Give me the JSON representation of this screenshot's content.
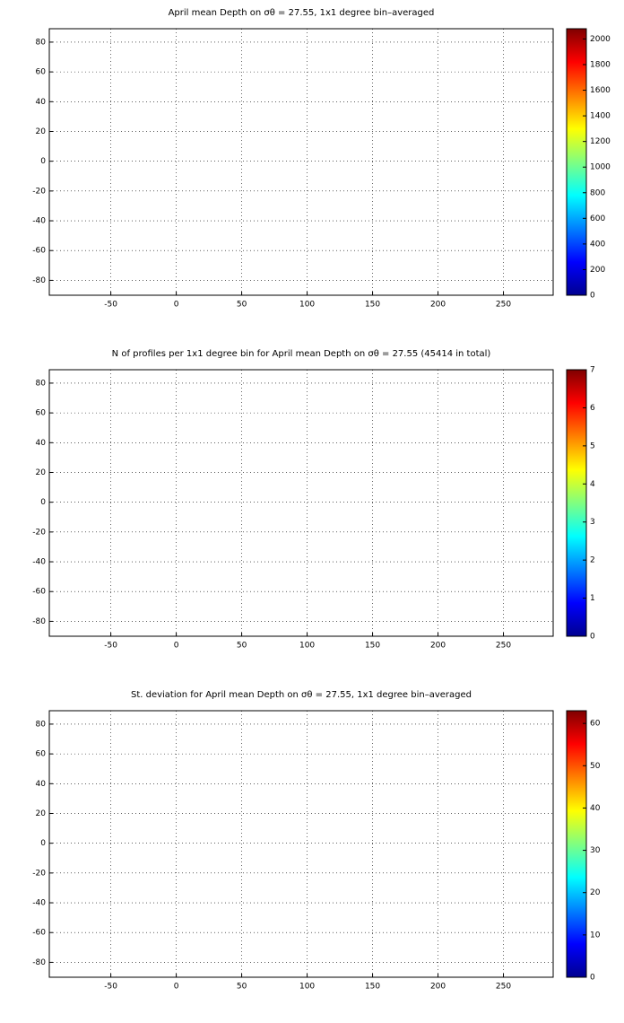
{
  "chart_data": [
    {
      "type": "map",
      "title": "April mean Depth on σθ = 27.55, 1x1 degree bin–averaged",
      "xlim": [
        -97,
        288
      ],
      "xticks": [
        -50,
        0,
        50,
        100,
        150,
        200,
        250
      ],
      "ylim": [
        -90,
        89
      ],
      "yticks": [
        -80,
        -60,
        -40,
        -20,
        0,
        20,
        40,
        60,
        80
      ],
      "grid": true,
      "colormap": "jet",
      "clim": [
        0,
        2080
      ],
      "cticks": [
        0,
        200,
        400,
        600,
        800,
        1000,
        1200,
        1400,
        1600,
        1800,
        2000
      ]
    },
    {
      "type": "map",
      "title": "N of profiles per 1x1 degree bin for April mean Depth on σθ = 27.55 (45414 in total)",
      "xlim": [
        -97,
        288
      ],
      "xticks": [
        -50,
        0,
        50,
        100,
        150,
        200,
        250
      ],
      "ylim": [
        -90,
        89
      ],
      "yticks": [
        -80,
        -60,
        -40,
        -20,
        0,
        20,
        40,
        60,
        80
      ],
      "grid": true,
      "colormap": "jet",
      "clim": [
        0,
        7
      ],
      "cticks": [
        0,
        1,
        2,
        3,
        4,
        5,
        6,
        7
      ]
    },
    {
      "type": "map",
      "title": "St. deviation for April mean Depth on σθ = 27.55, 1x1 degree bin–averaged",
      "xlim": [
        -97,
        288
      ],
      "xticks": [
        -50,
        0,
        50,
        100,
        150,
        200,
        250
      ],
      "ylim": [
        -90,
        89
      ],
      "yticks": [
        -80,
        -60,
        -40,
        -20,
        0,
        20,
        40,
        60,
        80
      ],
      "grid": true,
      "colormap": "jet",
      "clim": [
        0,
        63
      ],
      "cticks": [
        0,
        10,
        20,
        30,
        40,
        50,
        60
      ]
    }
  ]
}
